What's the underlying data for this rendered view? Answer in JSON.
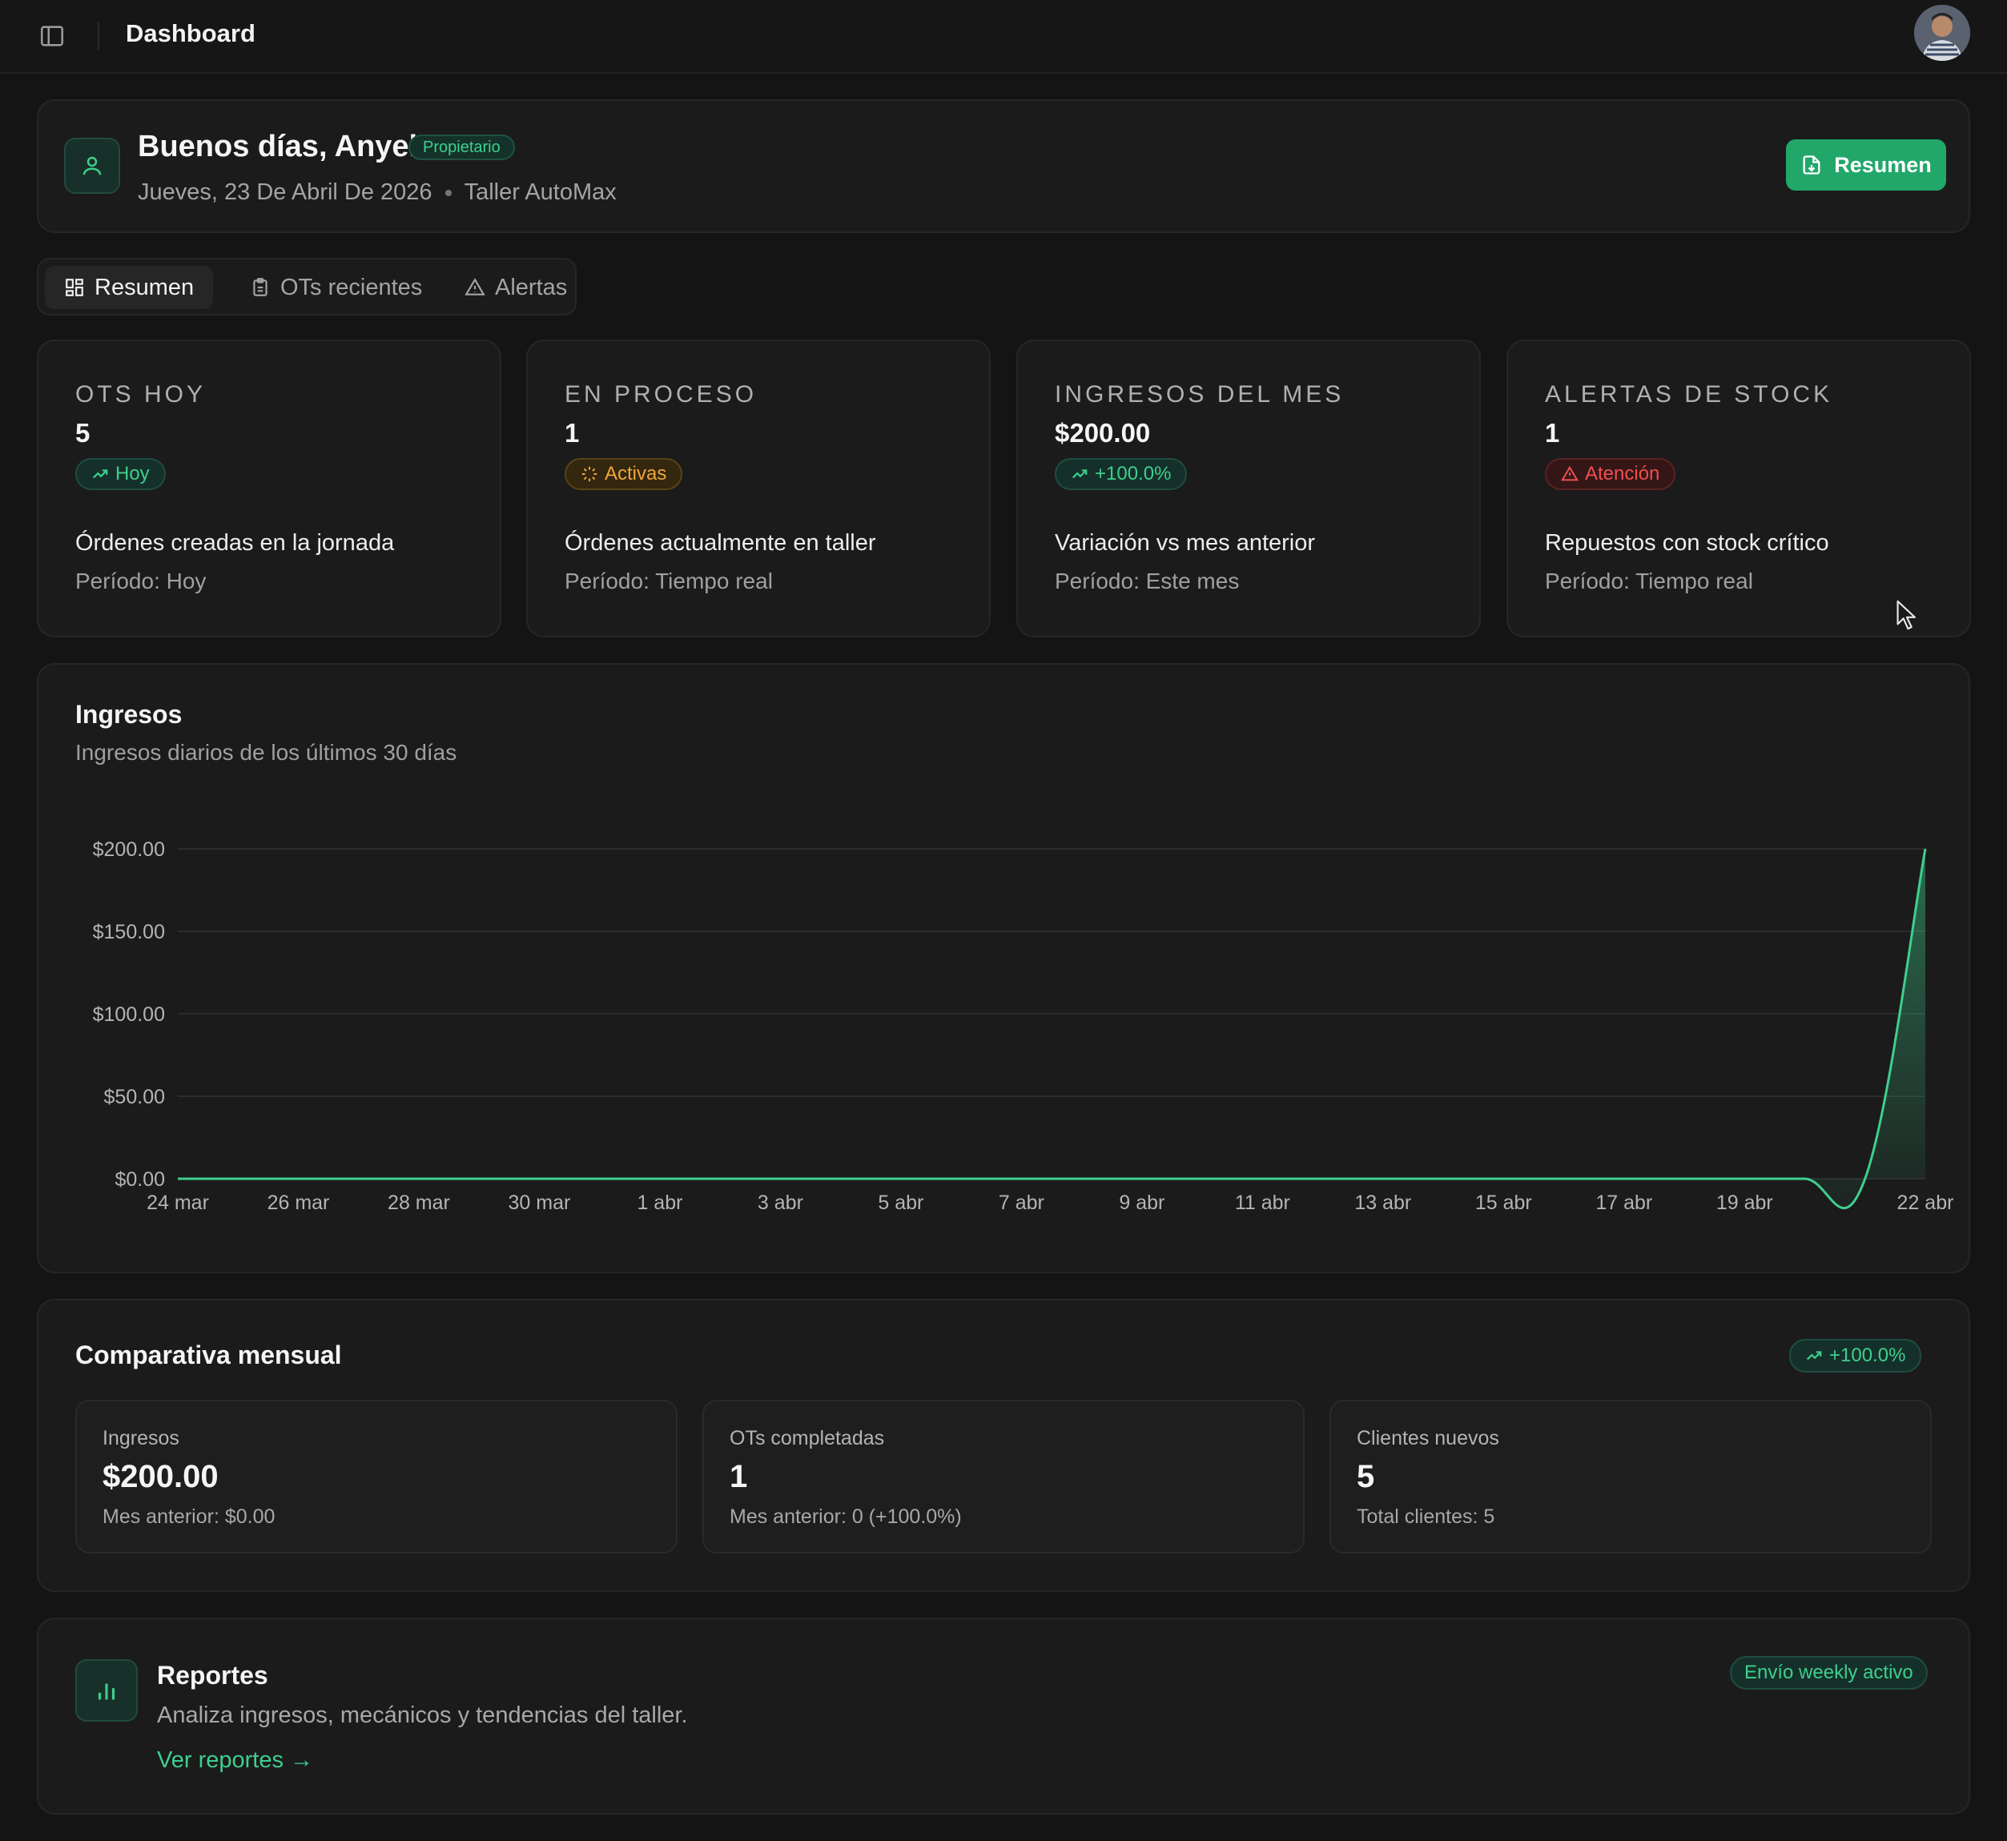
{
  "header": {
    "title": "Dashboard"
  },
  "greeting": {
    "title": "Buenos días, Anyelo",
    "role": "Propietario",
    "date": "Jueves, 23 De Abril De 2026",
    "workshop": "Taller AutoMax",
    "summary_button": "Resumen"
  },
  "tabs": [
    {
      "label": "Resumen",
      "icon": "dashboard-icon",
      "active": true
    },
    {
      "label": "OTs recientes",
      "icon": "clipboard-icon",
      "active": false
    },
    {
      "label": "Alertas",
      "icon": "warning-icon",
      "active": false
    }
  ],
  "kpis": [
    {
      "label": "OTS HOY",
      "value": "5",
      "badge": "Hoy",
      "badge_icon": "trending-up-icon",
      "description": "Órdenes creadas en la jornada",
      "period": "Período: Hoy"
    },
    {
      "label": "EN PROCESO",
      "value": "1",
      "badge": "Activas",
      "badge_icon": "loader-icon",
      "description": "Órdenes actualmente en taller",
      "period": "Período: Tiempo real"
    },
    {
      "label": "INGRESOS DEL MES",
      "value": "$200.00",
      "badge": "+100.0%",
      "badge_icon": "trending-up-icon",
      "description": "Variación vs mes anterior",
      "period": "Período: Este mes"
    },
    {
      "label": "ALERTAS DE STOCK",
      "value": "1",
      "badge": "Atención",
      "badge_icon": "warning-icon",
      "description": "Repuestos con stock crítico",
      "period": "Período: Tiempo real"
    }
  ],
  "chart": {
    "title": "Ingresos",
    "subtitle": "Ingresos diarios de los últimos 30 días"
  },
  "chart_data": {
    "type": "area",
    "title": "Ingresos",
    "subtitle": "Ingresos diarios de los últimos 30 días",
    "x_tick_labels": [
      "24 mar",
      "26 mar",
      "28 mar",
      "30 mar",
      "1 abr",
      "3 abr",
      "5 abr",
      "7 abr",
      "9 abr",
      "11 abr",
      "13 abr",
      "15 abr",
      "17 abr",
      "19 abr",
      "22 abr"
    ],
    "y_tick_labels": [
      "$0.00",
      "$50.00",
      "$100.00",
      "$150.00",
      "$200.00"
    ],
    "ylim": [
      0,
      200
    ],
    "grid": true,
    "color": "#3ecf8e",
    "series": [
      {
        "x": [
          "24 mar",
          "25 mar",
          "26 mar",
          "27 mar",
          "28 mar",
          "29 mar",
          "30 mar",
          "31 mar",
          "1 abr",
          "2 abr",
          "3 abr",
          "4 abr",
          "5 abr",
          "6 abr",
          "7 abr",
          "8 abr",
          "9 abr",
          "10 abr",
          "11 abr",
          "12 abr",
          "13 abr",
          "14 abr",
          "15 abr",
          "16 abr",
          "17 abr",
          "18 abr",
          "19 abr",
          "20 abr",
          "21 abr",
          "22 abr"
        ],
        "values": [
          0,
          0,
          0,
          0,
          0,
          0,
          0,
          0,
          0,
          0,
          0,
          0,
          0,
          0,
          0,
          0,
          0,
          0,
          0,
          0,
          0,
          0,
          0,
          0,
          0,
          0,
          0,
          0,
          0,
          200
        ]
      }
    ]
  },
  "monthly": {
    "title": "Comparativa mensual",
    "badge": "+100.0%",
    "stats": [
      {
        "label": "Ingresos",
        "value": "$200.00",
        "foot": "Mes anterior: $0.00"
      },
      {
        "label": "OTs completadas",
        "value": "1",
        "foot": "Mes anterior: 0 (+100.0%)"
      },
      {
        "label": "Clientes nuevos",
        "value": "5",
        "foot": "Total clientes: 5"
      }
    ]
  },
  "reports": {
    "title": "Reportes",
    "subtitle": "Analiza ingresos, mecánicos y tendencias del taller.",
    "link": "Ver reportes →",
    "badge": "Envío weekly activo"
  },
  "colors": {
    "accent": "#22a76a",
    "accent_text": "#3ecf8e",
    "warning": "#f0a73a",
    "danger": "#ef4f4f",
    "background": "#141414"
  }
}
